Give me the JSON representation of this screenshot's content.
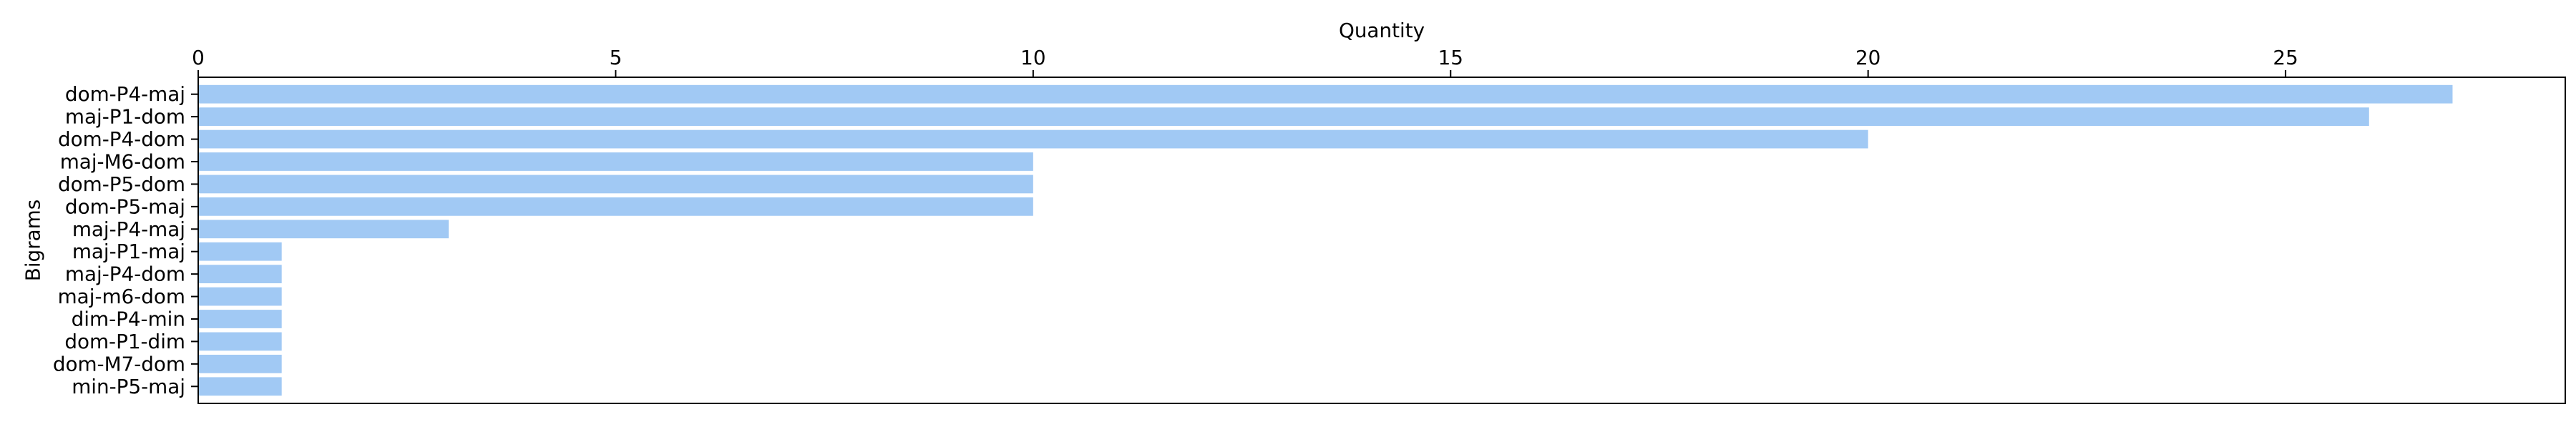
{
  "chart_data": {
    "type": "bar",
    "orientation": "horizontal",
    "title": "",
    "xlabel": "Quantity",
    "ylabel": "Bigrams",
    "xaxis_position": "top",
    "xlim": [
      0,
      28.35
    ],
    "xticks": [
      0,
      5,
      10,
      15,
      20,
      25
    ],
    "xtick_labels": [
      "0",
      "5",
      "10",
      "15",
      "20",
      "25"
    ],
    "grid": false,
    "legend": "none",
    "bar_color": "#a1c9f4",
    "categories": [
      "dom-P4-maj",
      "maj-P1-dom",
      "dom-P4-dom",
      "maj-M6-dom",
      "dom-P5-dom",
      "dom-P5-maj",
      "maj-P4-maj",
      "maj-P1-maj",
      "maj-P4-dom",
      "maj-m6-dom",
      "dim-P4-min",
      "dom-P1-dim",
      "dom-M7-dom",
      "min-P5-maj"
    ],
    "values": [
      27,
      26,
      20,
      10,
      10,
      10,
      3,
      1,
      1,
      1,
      1,
      1,
      1,
      1
    ]
  }
}
